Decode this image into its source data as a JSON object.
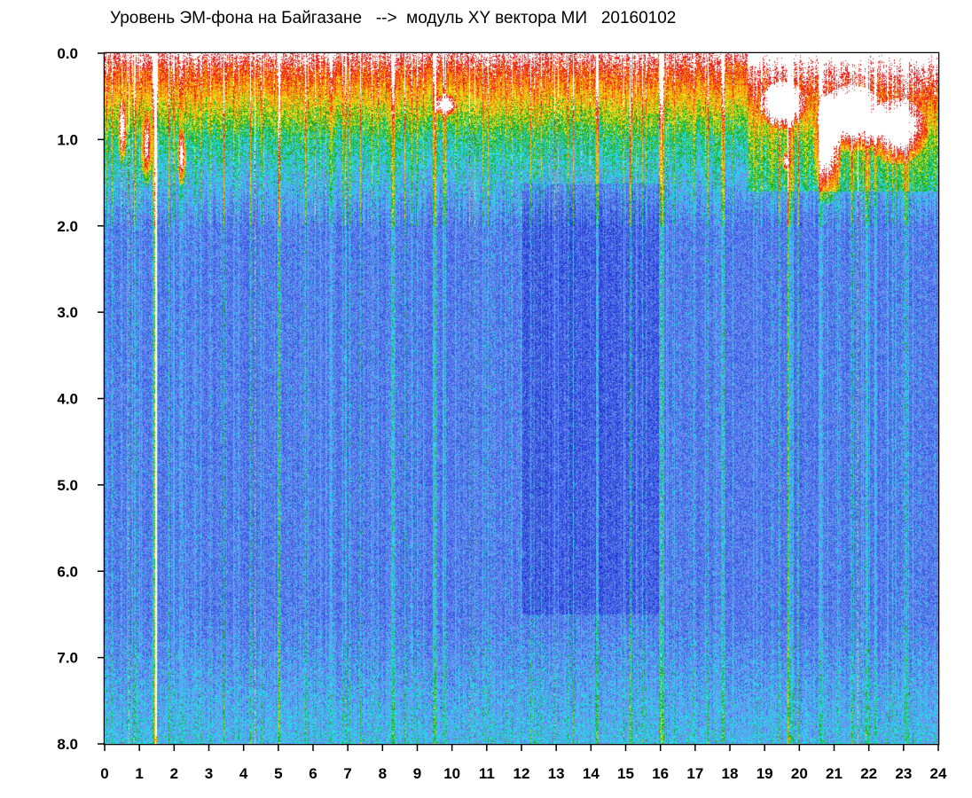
{
  "chart_data": {
    "type": "heatmap",
    "title": "Уровень ЭМ-фона на Байгазане   -->  модуль XY вектора МИ   20160102",
    "xlabel": "",
    "ylabel": "",
    "xlim": [
      0,
      24
    ],
    "ylim": [
      0.0,
      8.0
    ],
    "y_inverted": true,
    "x_ticks": [
      "0",
      "1",
      "2",
      "3",
      "4",
      "5",
      "6",
      "7",
      "8",
      "9",
      "10",
      "11",
      "12",
      "13",
      "14",
      "15",
      "16",
      "17",
      "18",
      "19",
      "20",
      "21",
      "22",
      "23",
      "24"
    ],
    "y_ticks": [
      "0.0",
      "1.0",
      "2.0",
      "3.0",
      "4.0",
      "5.0",
      "6.0",
      "7.0",
      "8.0"
    ],
    "colormap": [
      "#1e2ccf",
      "#3a5be0",
      "#6a8ef0",
      "#2ad8e8",
      "#20b020",
      "#e8e020",
      "#ff8a00",
      "#e82020",
      "#ffffff"
    ],
    "grid": false,
    "legend": "none"
  }
}
